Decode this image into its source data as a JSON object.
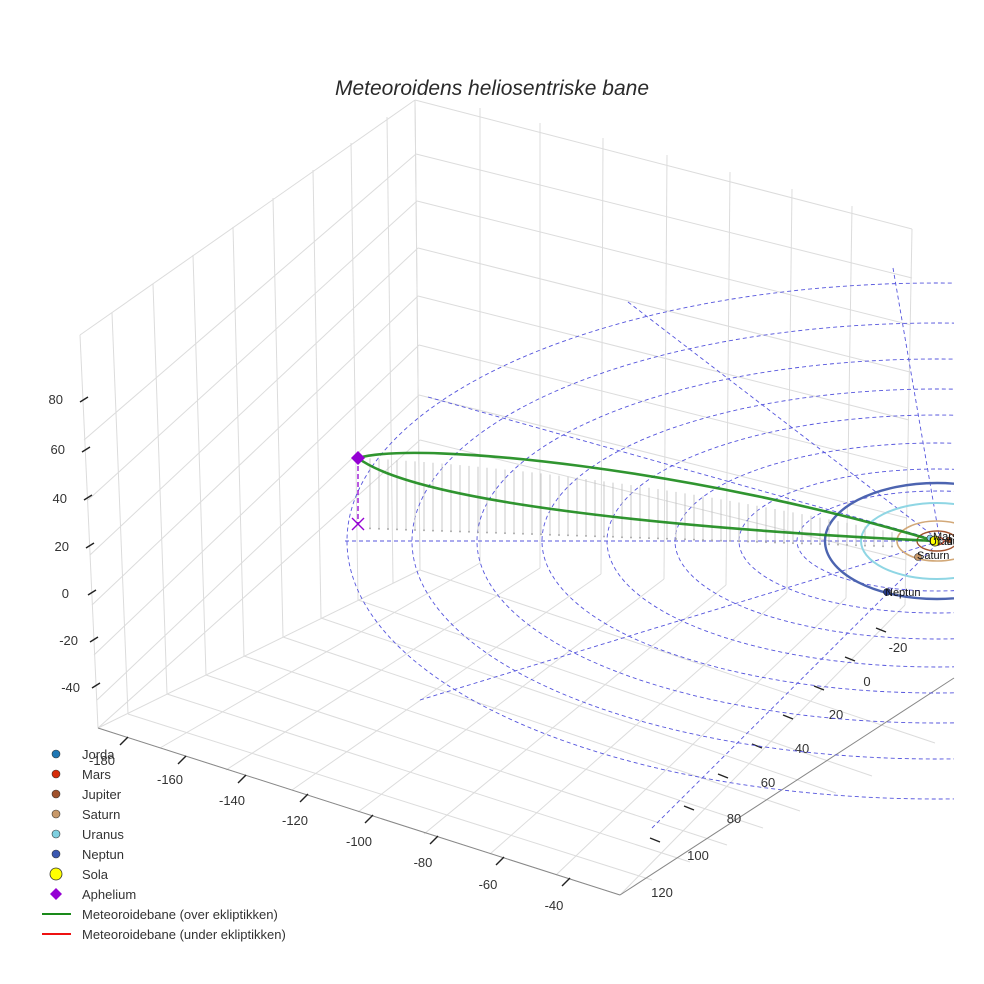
{
  "chart_data": {
    "type": "3d-line",
    "title": "Meteoroidens heliosentriske bane",
    "axes": {
      "x": {
        "ticks": [
          "-180",
          "-160",
          "-140",
          "-120",
          "-100",
          "-80",
          "-60",
          "-40"
        ]
      },
      "y": {
        "ticks": [
          "-20",
          "0",
          "20",
          "40",
          "60",
          "80",
          "100",
          "120"
        ]
      },
      "z": {
        "ticks": [
          "80",
          "60",
          "40",
          "20",
          "0",
          "-20",
          "-40"
        ]
      }
    },
    "legend": [
      {
        "label": "Jorda",
        "marker": "circle",
        "color": "#1f77b4"
      },
      {
        "label": "Mars",
        "marker": "circle",
        "color": "#d62d0a"
      },
      {
        "label": "Jupiter",
        "marker": "circle",
        "color": "#a0522d"
      },
      {
        "label": "Saturn",
        "marker": "circle",
        "color": "#c8996a"
      },
      {
        "label": "Uranus",
        "marker": "circle",
        "color": "#7fd0e0"
      },
      {
        "label": "Neptun",
        "marker": "circle",
        "color": "#3b58b0"
      },
      {
        "label": "Sola",
        "marker": "big-circle",
        "color": "#ffff00"
      },
      {
        "label": "Aphelium",
        "marker": "diamond",
        "color": "#9400d3"
      },
      {
        "label": "Meteoroidebane (over ekliptikken)",
        "marker": "line",
        "color": "#1a8a1a"
      },
      {
        "label": "Meteoroidebane (under ekliptikken)",
        "marker": "line",
        "color": "#ee1111"
      }
    ],
    "planet_labels": [
      {
        "name": "Neptun"
      },
      {
        "name": "Saturn"
      },
      {
        "name": "Uranus"
      },
      {
        "name": "Jupiter"
      },
      {
        "name": "Mars"
      }
    ],
    "orbit_series": {
      "name": "Meteoroidebane (over ekliptikken)",
      "aphelion_label": "Aphelium",
      "perihelion_near": "Sola"
    }
  },
  "colors": {
    "grid": "#dcdcdc",
    "axis_line": "#222222",
    "guide_dash": "#5555dd",
    "orbit": "#1a8a1a",
    "aphelion": "#9400d3"
  }
}
